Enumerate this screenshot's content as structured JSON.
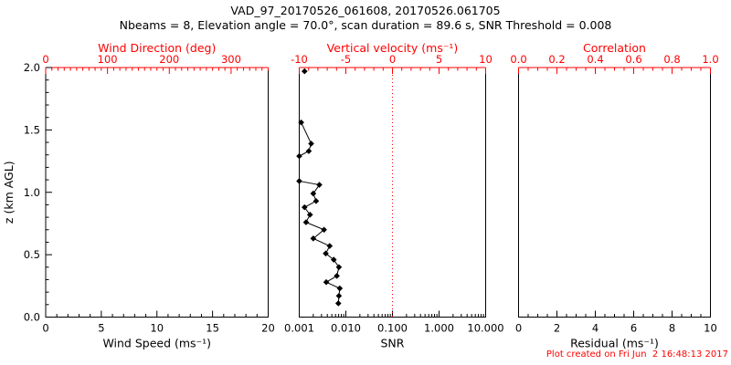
{
  "header": {
    "title": "VAD_97_20170526_061608, 20170526.061705",
    "subtitle": "Nbeams = 8, Elevation angle = 70.0°, scan duration = 89.6 s, SNR Threshold = 0.008"
  },
  "footer": {
    "created": "Plot created on Fri Jun  2 16:48:13 2017"
  },
  "colors": {
    "primary_axis": "#000000",
    "secondary_axis": "#ff0000",
    "background": "#ffffff",
    "series": "#000000",
    "reference_line": "#ff0000"
  },
  "y_axis": {
    "label": "z (km AGL)",
    "min": 0,
    "max": 2,
    "major_ticks": [
      0,
      0.5,
      1,
      1.5,
      2
    ],
    "major_labels": [
      "0.0",
      "0.5",
      "1.0",
      "1.5",
      "2.0"
    ],
    "minor_step": 0.1
  },
  "chart_data": [
    {
      "id": "wind",
      "type": "scatter",
      "bottom_axis": {
        "label": "Wind Speed (ms⁻¹)",
        "scale": "linear",
        "min": 0,
        "max": 20,
        "major_ticks": [
          0,
          5,
          10,
          15,
          20
        ],
        "major_labels": [
          "0",
          "5",
          "10",
          "15",
          "20"
        ],
        "minor_step": 1
      },
      "top_axis": {
        "label": "Wind Direction (deg)",
        "scale": "linear",
        "min": 0,
        "max": 360,
        "major_ticks": [
          0,
          100,
          200,
          300
        ],
        "major_labels": [
          "0",
          "100",
          "200",
          "300"
        ],
        "minor_step": 10
      },
      "series": []
    },
    {
      "id": "snr",
      "type": "line",
      "bottom_axis": {
        "label": "SNR",
        "scale": "log",
        "min": 0.001,
        "max": 10,
        "major_ticks": [
          0.001,
          0.01,
          0.1,
          1,
          10
        ],
        "major_labels": [
          "0.001",
          "0.010",
          "0.100",
          "1.000",
          "10.000"
        ]
      },
      "top_axis": {
        "label": "Vertical velocity (ms⁻¹)",
        "scale": "linear",
        "min": -10,
        "max": 10,
        "major_ticks": [
          -10,
          -5,
          0,
          5,
          10
        ],
        "major_labels": [
          "-10",
          "-5",
          "0",
          "5",
          "10"
        ],
        "minor_step": 1
      },
      "reference_line": {
        "top_axis_value": 0,
        "snr_value": 0.1,
        "style": "dotted"
      },
      "series": [
        {
          "name": "snr-profile-top",
          "points": [
            {
              "snr": 0.0013,
              "z": 1.97
            }
          ]
        },
        {
          "name": "snr-profile-mid",
          "points": [
            {
              "snr": 0.0011,
              "z": 1.56
            },
            {
              "snr": 0.0018,
              "z": 1.39
            },
            {
              "snr": 0.0016,
              "z": 1.33
            },
            {
              "snr": 0.001,
              "z": 1.29
            }
          ]
        },
        {
          "name": "snr-profile-low",
          "points": [
            {
              "snr": 0.001,
              "z": 1.09
            },
            {
              "snr": 0.0027,
              "z": 1.06
            },
            {
              "snr": 0.002,
              "z": 0.99
            },
            {
              "snr": 0.0023,
              "z": 0.93
            },
            {
              "snr": 0.0013,
              "z": 0.88
            },
            {
              "snr": 0.0017,
              "z": 0.82
            },
            {
              "snr": 0.0014,
              "z": 0.76
            },
            {
              "snr": 0.0034,
              "z": 0.7
            },
            {
              "snr": 0.002,
              "z": 0.63
            },
            {
              "snr": 0.0045,
              "z": 0.57
            },
            {
              "snr": 0.0037,
              "z": 0.51
            },
            {
              "snr": 0.0055,
              "z": 0.46
            },
            {
              "snr": 0.0071,
              "z": 0.4
            },
            {
              "snr": 0.0064,
              "z": 0.33
            },
            {
              "snr": 0.0038,
              "z": 0.28
            },
            {
              "snr": 0.0074,
              "z": 0.23
            },
            {
              "snr": 0.0071,
              "z": 0.17
            },
            {
              "snr": 0.0069,
              "z": 0.11
            }
          ]
        }
      ]
    },
    {
      "id": "residual",
      "type": "scatter",
      "bottom_axis": {
        "label": "Residual (ms⁻¹)",
        "scale": "linear",
        "min": 0,
        "max": 10,
        "major_ticks": [
          0,
          2,
          4,
          6,
          8,
          10
        ],
        "major_labels": [
          "0",
          "2",
          "4",
          "6",
          "8",
          "10"
        ],
        "minor_step": 0.5
      },
      "top_axis": {
        "label": "Correlation",
        "scale": "linear",
        "min": 0,
        "max": 1,
        "major_ticks": [
          0,
          0.2,
          0.4,
          0.6,
          0.8,
          1
        ],
        "major_labels": [
          "0.0",
          "0.2",
          "0.4",
          "0.6",
          "0.8",
          "1.0"
        ],
        "minor_step": 0.05
      },
      "series": []
    }
  ]
}
